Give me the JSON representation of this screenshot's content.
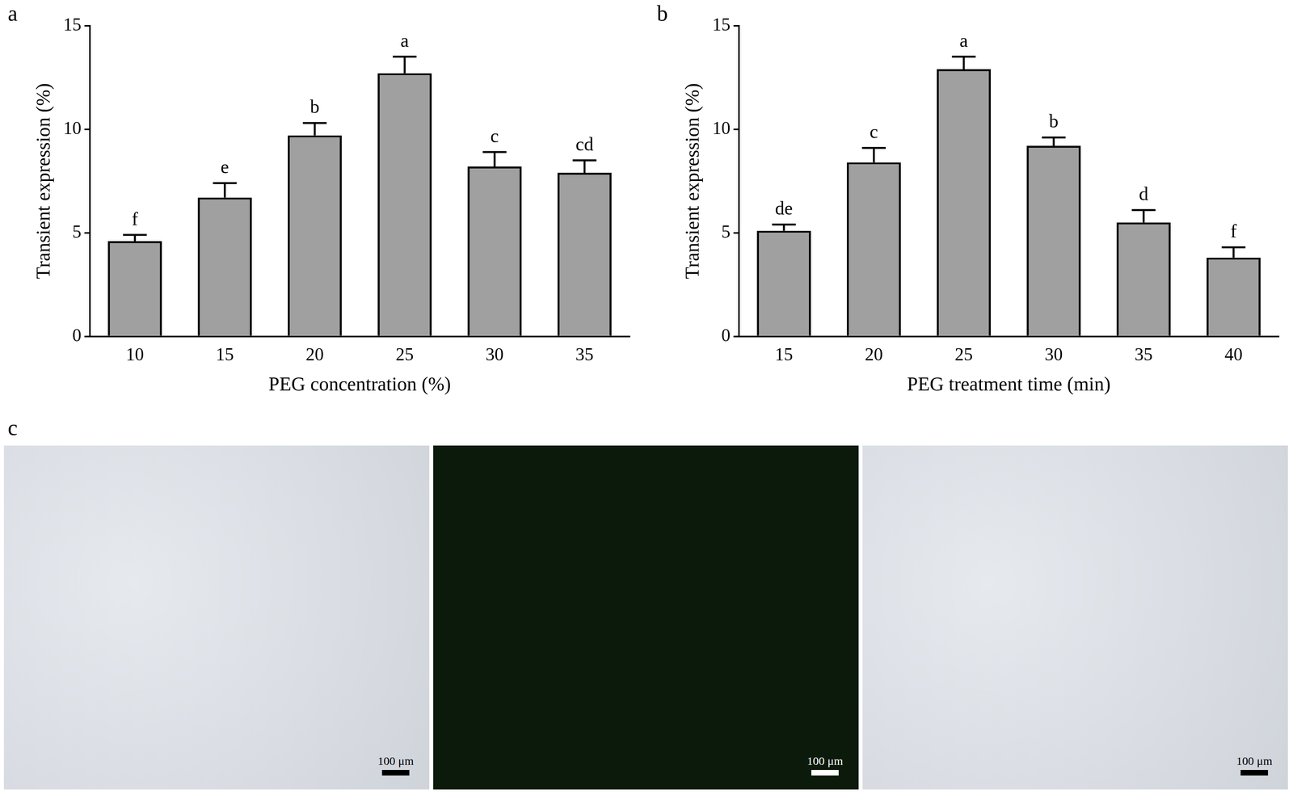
{
  "chart_data": [
    {
      "type": "bar",
      "panel": "a",
      "x_label": "PEG concentration (%)",
      "y_label": "Transient expression (%)",
      "categories": [
        "10",
        "15",
        "20",
        "25",
        "30",
        "35"
      ],
      "values": [
        4.6,
        6.7,
        9.7,
        12.7,
        8.2,
        7.9
      ],
      "errors": [
        0.3,
        0.7,
        0.6,
        0.8,
        0.7,
        0.6
      ],
      "annotations": [
        "f",
        "e",
        "b",
        "a",
        "c",
        "cd"
      ],
      "color": "#a0a0a0",
      "ylim": [
        0,
        15
      ],
      "yticks": [
        0,
        5,
        10,
        15
      ],
      "grid": false
    },
    {
      "type": "bar",
      "panel": "b",
      "x_label": "PEG treatment time (min)",
      "y_label": "Transient expression (%)",
      "categories": [
        "15",
        "20",
        "25",
        "30",
        "35",
        "40"
      ],
      "values": [
        5.1,
        8.4,
        12.9,
        9.2,
        5.5,
        3.8
      ],
      "errors": [
        0.3,
        0.7,
        0.6,
        0.4,
        0.6,
        0.5
      ],
      "annotations": [
        "de",
        "c",
        "a",
        "b",
        "d",
        "f"
      ],
      "color": "#a0a0a0",
      "ylim": [
        0,
        15
      ],
      "yticks": [
        0,
        5,
        10,
        15
      ],
      "grid": false
    }
  ],
  "image_panel": {
    "panel": "c",
    "scale_bar_labels": [
      "100 μm",
      "100 μm",
      "100 μm"
    ]
  }
}
